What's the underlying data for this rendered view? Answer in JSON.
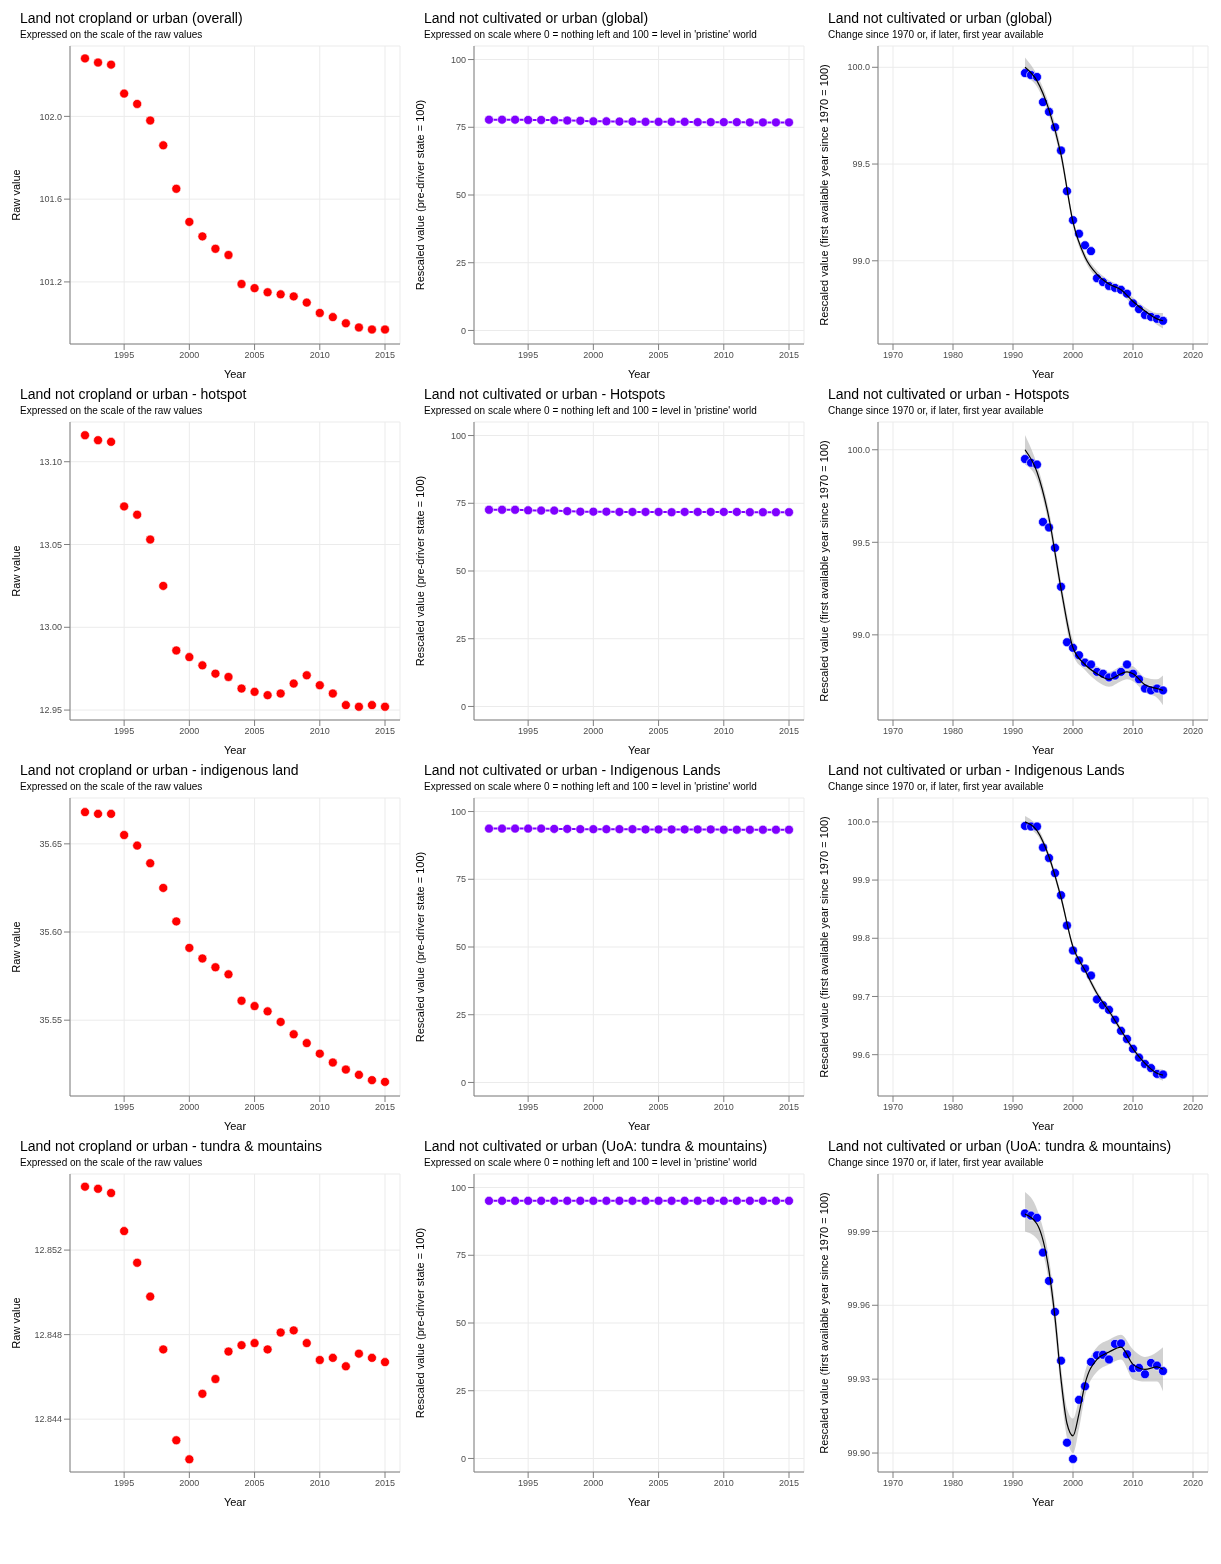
{
  "chart_data": [
    {
      "type": "scatter",
      "title": "Land not cropland or urban (overall)",
      "subtitle": "Expressed on the scale of the raw values",
      "xlabel": "Year",
      "ylabel": "Raw value",
      "x": [
        1992,
        1993,
        1994,
        1995,
        1996,
        1997,
        1998,
        1999,
        2000,
        2001,
        2002,
        2003,
        2004,
        2005,
        2006,
        2007,
        2008,
        2009,
        2010,
        2011,
        2012,
        2013,
        2014,
        2015
      ],
      "xlim": [
        1990.85,
        2016.15
      ],
      "xticks": [
        1995,
        2000,
        2005,
        2010,
        2015
      ],
      "ylim": [
        100.9,
        102.34
      ],
      "yticks": [
        {
          "value": 101.2,
          "label": "101.2"
        },
        {
          "value": 101.6,
          "label": "101.6"
        },
        {
          "value": 102,
          "label": "102.0"
        }
      ],
      "grid": true,
      "marker": "circle",
      "series": [
        {
          "color": "#ff0000",
          "values": [
            102.28,
            102.26,
            102.25,
            102.11,
            102.06,
            101.98,
            101.86,
            101.65,
            101.49,
            101.42,
            101.36,
            101.33,
            101.19,
            101.17,
            101.15,
            101.14,
            101.13,
            101.1,
            101.05,
            101.03,
            101.0,
            100.98,
            100.97,
            100.97
          ]
        }
      ]
    },
    {
      "type": "line",
      "title": "Land not cultivated or urban (global)",
      "subtitle": "Expressed on scale where 0 = nothing left and 100 = level in 'pristine' world",
      "xlabel": "Year",
      "ylabel": "Rescaled value (pre-driver state = 100)",
      "x": [
        1992,
        1993,
        1994,
        1995,
        1996,
        1997,
        1998,
        1999,
        2000,
        2001,
        2002,
        2003,
        2004,
        2005,
        2006,
        2007,
        2008,
        2009,
        2010,
        2011,
        2012,
        2013,
        2014,
        2015
      ],
      "xlim": [
        1990.85,
        2016.15
      ],
      "xticks": [
        1995,
        2000,
        2005,
        2010,
        2015
      ],
      "ylim": [
        -5,
        105
      ],
      "yticks": [
        0,
        25,
        50,
        75,
        100
      ],
      "grid": true,
      "marker": "circle",
      "series": [
        {
          "color": "#7f00ff",
          "values": [
            77.8,
            77.8,
            77.8,
            77.7,
            77.7,
            77.6,
            77.5,
            77.4,
            77.2,
            77.2,
            77.1,
            77.1,
            77.0,
            77.0,
            77.0,
            77.0,
            76.9,
            76.9,
            76.9,
            76.9,
            76.8,
            76.8,
            76.8,
            76.8
          ]
        }
      ]
    },
    {
      "type": "scatter",
      "title": "Land not cultivated or urban (global)",
      "subtitle": "Change since 1970 or, if later, first year available",
      "xlabel": "Year",
      "ylabel": "Rescaled value (first available year since 1970 = 100)",
      "x": [
        1992,
        1993,
        1994,
        1995,
        1996,
        1997,
        1998,
        1999,
        2000,
        2001,
        2002,
        2003,
        2004,
        2005,
        2006,
        2007,
        2008,
        2009,
        2010,
        2011,
        2012,
        2013,
        2014,
        2015
      ],
      "xlim": [
        1967.5,
        2022.5
      ],
      "xticks": [
        1970,
        1980,
        1990,
        2000,
        2010,
        2020
      ],
      "ylim": [
        98.57,
        100.11
      ],
      "yticks": [
        {
          "value": 99,
          "label": "99.0"
        },
        {
          "value": 99.5,
          "label": "99.5"
        },
        {
          "value": 100,
          "label": "100.0"
        }
      ],
      "grid": true,
      "marker": "circle",
      "series": [
        {
          "color": "#0000ff",
          "values": [
            99.97,
            99.96,
            99.95,
            99.82,
            99.77,
            99.69,
            99.57,
            99.36,
            99.21,
            99.14,
            99.08,
            99.05,
            98.91,
            98.89,
            98.87,
            98.86,
            98.85,
            98.83,
            98.78,
            98.75,
            98.72,
            98.71,
            98.7,
            98.69
          ]
        },
        {
          "type": "line",
          "marker": "none",
          "color": "#000000",
          "x": [
            1992,
            1994,
            1996,
            1998,
            2000,
            2002,
            2004,
            2006,
            2008,
            2010,
            2012,
            2014,
            2015
          ],
          "values": [
            100.0,
            99.93,
            99.78,
            99.55,
            99.2,
            99.02,
            98.93,
            98.88,
            98.85,
            98.79,
            98.74,
            98.7,
            98.69
          ],
          "lower": [
            99.95,
            99.9,
            99.75,
            99.52,
            99.18,
            99.0,
            98.91,
            98.86,
            98.83,
            98.77,
            98.72,
            98.67,
            98.65
          ],
          "upper": [
            100.05,
            99.96,
            99.81,
            99.58,
            99.22,
            99.04,
            98.95,
            98.9,
            98.87,
            98.81,
            98.76,
            98.73,
            98.73
          ]
        }
      ]
    },
    {
      "type": "scatter",
      "title": "Land not cropland or urban - hotspot",
      "subtitle": "Expressed on the scale of the raw values",
      "xlabel": "Year",
      "ylabel": "Raw value",
      "x": [
        1992,
        1993,
        1994,
        1995,
        1996,
        1997,
        1998,
        1999,
        2000,
        2001,
        2002,
        2003,
        2004,
        2005,
        2006,
        2007,
        2008,
        2009,
        2010,
        2011,
        2012,
        2013,
        2014,
        2015
      ],
      "xlim": [
        1990.85,
        2016.15
      ],
      "xticks": [
        1995,
        2000,
        2005,
        2010,
        2015
      ],
      "ylim": [
        12.944,
        13.124
      ],
      "yticks": [
        12.95,
        {
          "value": 13,
          "label": "13.00"
        },
        13.05,
        {
          "value": 13.1,
          "label": "13.10"
        }
      ],
      "grid": true,
      "marker": "circle",
      "series": [
        {
          "color": "#ff0000",
          "values": [
            13.116,
            13.113,
            13.112,
            13.073,
            13.068,
            13.053,
            13.025,
            12.986,
            12.982,
            12.977,
            12.972,
            12.97,
            12.963,
            12.961,
            12.959,
            12.96,
            12.966,
            12.971,
            12.965,
            12.96,
            12.953,
            12.952,
            12.953,
            12.952
          ]
        }
      ]
    },
    {
      "type": "line",
      "title": "Land not cultivated or urban - Hotspots",
      "subtitle": "Expressed on scale where 0 = nothing left and 100 = level in 'pristine' world",
      "xlabel": "Year",
      "ylabel": "Rescaled value (pre-driver state = 100)",
      "x": [
        1992,
        1993,
        1994,
        1995,
        1996,
        1997,
        1998,
        1999,
        2000,
        2001,
        2002,
        2003,
        2004,
        2005,
        2006,
        2007,
        2008,
        2009,
        2010,
        2011,
        2012,
        2013,
        2014,
        2015
      ],
      "xlim": [
        1990.85,
        2016.15
      ],
      "xticks": [
        1995,
        2000,
        2005,
        2010,
        2015
      ],
      "ylim": [
        -5,
        105
      ],
      "yticks": [
        0,
        25,
        50,
        75,
        100
      ],
      "grid": true,
      "marker": "circle",
      "series": [
        {
          "color": "#7f00ff",
          "values": [
            72.6,
            72.6,
            72.6,
            72.4,
            72.3,
            72.3,
            72.1,
            71.9,
            71.9,
            71.9,
            71.8,
            71.8,
            71.8,
            71.8,
            71.7,
            71.8,
            71.8,
            71.8,
            71.8,
            71.8,
            71.7,
            71.7,
            71.7,
            71.7
          ]
        }
      ]
    },
    {
      "type": "scatter",
      "title": "Land not cultivated or urban - Hotspots",
      "subtitle": "Change since 1970 or, if later, first year available",
      "xlabel": "Year",
      "ylabel": "Rescaled value (first available year since 1970 = 100)",
      "x": [
        1992,
        1993,
        1994,
        1995,
        1996,
        1997,
        1998,
        1999,
        2000,
        2001,
        2002,
        2003,
        2004,
        2005,
        2006,
        2007,
        2008,
        2009,
        2010,
        2011,
        2012,
        2013,
        2014,
        2015
      ],
      "xlim": [
        1967.5,
        2022.5
      ],
      "xticks": [
        1970,
        1980,
        1990,
        2000,
        2010,
        2020
      ],
      "ylim": [
        98.54,
        100.15
      ],
      "yticks": [
        {
          "value": 99,
          "label": "99.0"
        },
        {
          "value": 99.5,
          "label": "99.5"
        },
        {
          "value": 100,
          "label": "100.0"
        }
      ],
      "grid": true,
      "marker": "circle",
      "series": [
        {
          "color": "#0000ff",
          "values": [
            99.95,
            99.93,
            99.92,
            99.61,
            99.58,
            99.47,
            99.26,
            98.96,
            98.93,
            98.89,
            98.85,
            98.84,
            98.8,
            98.79,
            98.77,
            98.78,
            98.8,
            98.84,
            98.79,
            98.76,
            98.71,
            98.7,
            98.71,
            98.7
          ]
        },
        {
          "type": "line",
          "marker": "none",
          "color": "#000000",
          "x": [
            1992,
            1994,
            1996,
            1998,
            2000,
            2002,
            2004,
            2006,
            2008,
            2009,
            2010,
            2012,
            2014,
            2015
          ],
          "values": [
            100.0,
            99.88,
            99.63,
            99.25,
            98.93,
            98.84,
            98.79,
            98.76,
            98.79,
            98.8,
            98.79,
            98.73,
            98.71,
            98.7
          ],
          "lower": [
            99.92,
            99.84,
            99.59,
            99.21,
            98.89,
            98.81,
            98.75,
            98.72,
            98.75,
            98.76,
            98.75,
            98.69,
            98.66,
            98.62
          ],
          "upper": [
            100.08,
            99.92,
            99.67,
            99.29,
            98.97,
            98.87,
            98.83,
            98.8,
            98.83,
            98.84,
            98.83,
            98.77,
            98.76,
            98.78
          ]
        }
      ]
    },
    {
      "type": "scatter",
      "title": "Land not cropland or urban - indigenous land",
      "subtitle": "Expressed on the scale of the raw values",
      "xlabel": "Year",
      "ylabel": "Raw value",
      "x": [
        1992,
        1993,
        1994,
        1995,
        1996,
        1997,
        1998,
        1999,
        2000,
        2001,
        2002,
        2003,
        2004,
        2005,
        2006,
        2007,
        2008,
        2009,
        2010,
        2011,
        2012,
        2013,
        2014,
        2015
      ],
      "xlim": [
        1990.85,
        2016.15
      ],
      "xticks": [
        1995,
        2000,
        2005,
        2010,
        2015
      ],
      "ylim": [
        35.507,
        35.676
      ],
      "yticks": [
        35.55,
        {
          "value": 35.6,
          "label": "35.60"
        },
        35.65
      ],
      "grid": true,
      "marker": "circle",
      "series": [
        {
          "color": "#ff0000",
          "values": [
            35.668,
            35.667,
            35.667,
            35.655,
            35.649,
            35.639,
            35.625,
            35.606,
            35.591,
            35.585,
            35.58,
            35.576,
            35.561,
            35.558,
            35.555,
            35.549,
            35.542,
            35.537,
            35.531,
            35.526,
            35.522,
            35.519,
            35.516,
            35.515
          ]
        }
      ]
    },
    {
      "type": "line",
      "title": "Land not cultivated or urban - Indigenous Lands",
      "subtitle": "Expressed on scale where 0 = nothing left and 100 = level in 'pristine' world",
      "xlabel": "Year",
      "ylabel": "Rescaled value (pre-driver state = 100)",
      "x": [
        1992,
        1993,
        1994,
        1995,
        1996,
        1997,
        1998,
        1999,
        2000,
        2001,
        2002,
        2003,
        2004,
        2005,
        2006,
        2007,
        2008,
        2009,
        2010,
        2011,
        2012,
        2013,
        2014,
        2015
      ],
      "xlim": [
        1990.85,
        2016.15
      ],
      "xticks": [
        1995,
        2000,
        2005,
        2010,
        2015
      ],
      "ylim": [
        -5,
        105
      ],
      "yticks": [
        0,
        25,
        50,
        75,
        100
      ],
      "grid": true,
      "marker": "circle",
      "series": [
        {
          "color": "#7f00ff",
          "values": [
            93.7,
            93.7,
            93.7,
            93.7,
            93.7,
            93.6,
            93.6,
            93.5,
            93.5,
            93.5,
            93.5,
            93.5,
            93.4,
            93.4,
            93.4,
            93.4,
            93.4,
            93.4,
            93.3,
            93.3,
            93.3,
            93.3,
            93.3,
            93.3
          ]
        }
      ]
    },
    {
      "type": "scatter",
      "title": "Land not cultivated or urban - Indigenous Lands",
      "subtitle": "Change since 1970 or, if later, first year available",
      "xlabel": "Year",
      "ylabel": "Rescaled value (first available year since 1970 = 100)",
      "x": [
        1992,
        1993,
        1994,
        1995,
        1996,
        1997,
        1998,
        1999,
        2000,
        2001,
        2002,
        2003,
        2004,
        2005,
        2006,
        2007,
        2008,
        2009,
        2010,
        2011,
        2012,
        2013,
        2014,
        2015
      ],
      "xlim": [
        1967.5,
        2022.5
      ],
      "xticks": [
        1970,
        1980,
        1990,
        2000,
        2010,
        2020
      ],
      "ylim": [
        99.529,
        100.041
      ],
      "yticks": [
        {
          "value": 99.6,
          "label": "99.6"
        },
        {
          "value": 99.7,
          "label": "99.7"
        },
        {
          "value": 99.8,
          "label": "99.8"
        },
        {
          "value": 99.9,
          "label": "99.9"
        },
        {
          "value": 100,
          "label": "100.0"
        }
      ],
      "grid": true,
      "marker": "circle",
      "series": [
        {
          "color": "#0000ff",
          "values": [
            99.993,
            99.992,
            99.992,
            99.956,
            99.938,
            99.912,
            99.874,
            99.822,
            99.779,
            99.762,
            99.748,
            99.736,
            99.695,
            99.685,
            99.677,
            99.66,
            99.641,
            99.627,
            99.61,
            99.595,
            99.584,
            99.577,
            99.567,
            99.566
          ]
        },
        {
          "type": "line",
          "marker": "none",
          "color": "#000000",
          "x": [
            1992,
            1994,
            1996,
            1998,
            2000,
            2002,
            2004,
            2006,
            2008,
            2010,
            2012,
            2014,
            2015
          ],
          "values": [
            100.0,
            99.985,
            99.94,
            99.87,
            99.785,
            99.745,
            99.705,
            99.675,
            99.642,
            99.61,
            99.585,
            99.568,
            99.565
          ],
          "lower": [
            99.99,
            99.978,
            99.934,
            99.864,
            99.78,
            99.74,
            99.7,
            99.67,
            99.637,
            99.605,
            99.579,
            99.56,
            99.555
          ],
          "upper": [
            100.01,
            99.992,
            99.946,
            99.876,
            99.79,
            99.75,
            99.71,
            99.68,
            99.647,
            99.615,
            99.591,
            99.576,
            99.575
          ]
        }
      ]
    },
    {
      "type": "scatter",
      "title": "Land not cropland or urban - tundra & mountains",
      "subtitle": "Expressed on the scale of the raw values",
      "xlabel": "Year",
      "ylabel": "Raw value",
      "x": [
        1992,
        1993,
        1994,
        1995,
        1996,
        1997,
        1998,
        1999,
        2000,
        2001,
        2002,
        2003,
        2004,
        2005,
        2006,
        2007,
        2008,
        2009,
        2010,
        2011,
        2012,
        2013,
        2014,
        2015
      ],
      "xlim": [
        1990.85,
        2016.15
      ],
      "xticks": [
        1995,
        2000,
        2005,
        2010,
        2015
      ],
      "ylim": [
        12.8415,
        12.8556
      ],
      "yticks": [
        12.844,
        12.848,
        12.852
      ],
      "grid": true,
      "marker": "circle",
      "series": [
        {
          "color": "#ff0000",
          "values": [
            12.855,
            12.8549,
            12.8547,
            12.8529,
            12.8514,
            12.8498,
            12.8473,
            12.843,
            12.8421,
            12.8452,
            12.8459,
            12.8472,
            12.8475,
            12.8476,
            12.8473,
            12.8481,
            12.8482,
            12.8476,
            12.8468,
            12.8469,
            12.8465,
            12.8471,
            12.8469,
            12.8467
          ]
        }
      ]
    },
    {
      "type": "line",
      "title": "Land not cultivated or urban (UoA: tundra & mountains)",
      "subtitle": "Expressed on scale where 0 = nothing left and 100 = level in 'pristine' world",
      "xlabel": "Year",
      "ylabel": "Rescaled value (pre-driver state = 100)",
      "x": [
        1992,
        1993,
        1994,
        1995,
        1996,
        1997,
        1998,
        1999,
        2000,
        2001,
        2002,
        2003,
        2004,
        2005,
        2006,
        2007,
        2008,
        2009,
        2010,
        2011,
        2012,
        2013,
        2014,
        2015
      ],
      "xlim": [
        1990.85,
        2016.15
      ],
      "xticks": [
        1995,
        2000,
        2005,
        2010,
        2015
      ],
      "ylim": [
        -5,
        105
      ],
      "yticks": [
        0,
        25,
        50,
        75,
        100
      ],
      "grid": true,
      "marker": "circle",
      "series": [
        {
          "color": "#7f00ff",
          "values": [
            95.1,
            95.1,
            95.1,
            95.1,
            95.1,
            95.1,
            95.1,
            95.1,
            95.1,
            95.1,
            95.1,
            95.1,
            95.1,
            95.1,
            95.1,
            95.1,
            95.1,
            95.1,
            95.1,
            95.1,
            95.1,
            95.1,
            95.1,
            95.1
          ]
        }
      ]
    },
    {
      "type": "scatter",
      "title": "Land not cultivated or urban (UoA: tundra & mountains)",
      "subtitle": "Change since 1970 or, if later, first year available",
      "xlabel": "Year",
      "ylabel": "Rescaled value (first available year since 1970 = 100)",
      "x": [
        1992,
        1993,
        1994,
        1995,
        1996,
        1997,
        1998,
        1999,
        2000,
        2001,
        2002,
        2003,
        2004,
        2005,
        2006,
        2007,
        2008,
        2009,
        2010,
        2011,
        2012,
        2013,
        2014,
        2015
      ],
      "xlim": [
        1967.5,
        2022.5
      ],
      "xticks": [
        1970,
        1980,
        1990,
        2000,
        2010,
        2020
      ],
      "ylim": [
        99.8923,
        100.0133
      ],
      "yticks": [
        {
          "value": 99.9,
          "label": "99.90"
        },
        99.93,
        99.96,
        99.99
      ],
      "grid": true,
      "marker": "circle",
      "series": [
        {
          "color": "#0000ff",
          "values": [
            99.9973,
            99.9964,
            99.9955,
            99.9814,
            99.9699,
            99.9573,
            99.9375,
            99.9042,
            99.8976,
            99.9216,
            99.9271,
            99.937,
            99.9397,
            99.9399,
            99.938,
            99.9443,
            99.9445,
            99.9401,
            99.9344,
            99.9346,
            99.932,
            99.9366,
            99.9355,
            99.9333
          ]
        },
        {
          "type": "line",
          "marker": "none",
          "color": "#000000",
          "x": [
            1992,
            1994,
            1996,
            1997,
            1998,
            1999,
            2000,
            2001,
            2002,
            2004,
            2006,
            2008,
            2010,
            2012,
            2014,
            2015
          ],
          "values": [
            99.997,
            99.993,
            99.974,
            99.955,
            99.93,
            99.912,
            99.907,
            99.916,
            99.928,
            99.938,
            99.941,
            99.943,
            99.936,
            99.934,
            99.935,
            99.934
          ],
          "lower": [
            99.99,
            99.987,
            99.969,
            99.95,
            99.925,
            99.906,
            99.9,
            99.91,
            99.923,
            99.933,
            99.936,
            99.938,
            99.93,
            99.929,
            99.929,
            99.925
          ],
          "upper": [
            100.006,
            99.999,
            99.979,
            99.96,
            99.935,
            99.918,
            99.914,
            99.922,
            99.933,
            99.943,
            99.946,
            99.948,
            99.942,
            99.939,
            99.941,
            99.943
          ]
        }
      ]
    }
  ]
}
